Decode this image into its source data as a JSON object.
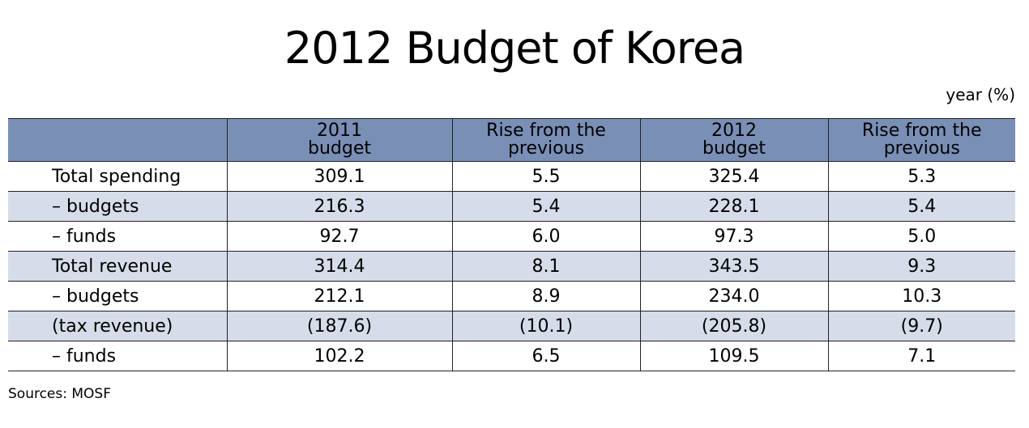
{
  "header": {
    "title": "2012 Budget of Korea",
    "unit": "year (%)"
  },
  "table": {
    "columns": [
      "",
      "2011\nbudget",
      "Rise from the\nprevious",
      "2012\nbudget",
      "Rise from the\nprevious"
    ],
    "rows": [
      [
        "Total spending",
        "309.1",
        "5.5",
        "325.4",
        "5.3"
      ],
      [
        "– budgets",
        "216.3",
        "5.4",
        "228.1",
        "5.4"
      ],
      [
        "– funds",
        "92.7",
        "6.0",
        "97.3",
        "5.0"
      ],
      [
        "Total revenue",
        "314.4",
        "8.1",
        "343.5",
        "9.3"
      ],
      [
        "– budgets",
        "212.1",
        "8.9",
        "234.0",
        "10.3"
      ],
      [
        "(tax revenue)",
        "(187.6)",
        "(10.1)",
        "(205.8)",
        "(9.7)"
      ],
      [
        "– funds",
        "102.2",
        "6.5",
        "109.5",
        "7.1"
      ]
    ]
  },
  "footer": {
    "source": "Sources: MOSF"
  }
}
